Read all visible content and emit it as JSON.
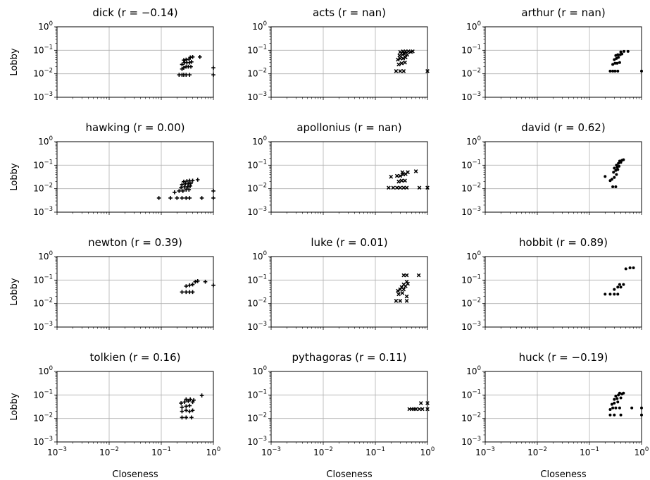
{
  "chart_data": {
    "type": "scatter",
    "xlabel": "Closeness",
    "ylabel": "Lobby",
    "xscale": "log",
    "yscale": "log",
    "xlim": [
      0.001,
      1
    ],
    "ylim": [
      0.001,
      1
    ],
    "grid": true,
    "tick_labels": [
      "10",
      "−3",
      "10",
      "−2",
      "10",
      "−1",
      "10",
      "0"
    ],
    "panels": [
      {
        "label": "dick",
        "r_text": "(r = −0.14)",
        "marker": "plus",
        "points": [
          [
            0.22,
            0.009
          ],
          [
            0.25,
            0.009
          ],
          [
            0.27,
            0.009
          ],
          [
            0.3,
            0.009
          ],
          [
            0.35,
            0.009
          ],
          [
            0.25,
            0.016
          ],
          [
            0.27,
            0.018
          ],
          [
            0.3,
            0.02
          ],
          [
            0.33,
            0.02
          ],
          [
            0.37,
            0.02
          ],
          [
            0.25,
            0.025
          ],
          [
            0.28,
            0.03
          ],
          [
            0.31,
            0.03
          ],
          [
            0.35,
            0.03
          ],
          [
            0.38,
            0.032
          ],
          [
            0.27,
            0.038
          ],
          [
            0.3,
            0.04
          ],
          [
            0.34,
            0.042
          ],
          [
            0.36,
            0.05
          ],
          [
            0.4,
            0.052
          ],
          [
            0.55,
            0.052
          ],
          [
            1.0,
            0.009
          ],
          [
            1.0,
            0.018
          ]
        ]
      },
      {
        "label": "acts",
        "r_text": "(r = nan)",
        "marker": "x",
        "points": [
          [
            0.25,
            0.013
          ],
          [
            0.3,
            0.013
          ],
          [
            0.35,
            0.013
          ],
          [
            0.28,
            0.025
          ],
          [
            0.32,
            0.028
          ],
          [
            0.37,
            0.03
          ],
          [
            0.27,
            0.04
          ],
          [
            0.3,
            0.045
          ],
          [
            0.34,
            0.045
          ],
          [
            0.38,
            0.05
          ],
          [
            0.29,
            0.06
          ],
          [
            0.33,
            0.065
          ],
          [
            0.36,
            0.07
          ],
          [
            0.41,
            0.065
          ],
          [
            0.3,
            0.085
          ],
          [
            0.34,
            0.09
          ],
          [
            0.38,
            0.09
          ],
          [
            0.43,
            0.09
          ],
          [
            0.48,
            0.085
          ],
          [
            0.52,
            0.09
          ],
          [
            1.0,
            0.013
          ]
        ]
      },
      {
        "label": "arthur",
        "r_text": "(r = nan)",
        "marker": "dot",
        "points": [
          [
            0.25,
            0.013
          ],
          [
            0.28,
            0.013
          ],
          [
            0.31,
            0.013
          ],
          [
            0.35,
            0.013
          ],
          [
            0.28,
            0.025
          ],
          [
            0.31,
            0.028
          ],
          [
            0.34,
            0.028
          ],
          [
            0.38,
            0.03
          ],
          [
            0.3,
            0.04
          ],
          [
            0.33,
            0.045
          ],
          [
            0.36,
            0.05
          ],
          [
            0.32,
            0.06
          ],
          [
            0.35,
            0.065
          ],
          [
            0.39,
            0.065
          ],
          [
            0.42,
            0.07
          ],
          [
            0.4,
            0.085
          ],
          [
            0.46,
            0.09
          ],
          [
            0.55,
            0.09
          ],
          [
            1.0,
            0.013
          ]
        ]
      },
      {
        "label": "hawking",
        "r_text": "(r = 0.00)",
        "marker": "plus",
        "points": [
          [
            0.09,
            0.004
          ],
          [
            0.15,
            0.004
          ],
          [
            0.2,
            0.004
          ],
          [
            0.25,
            0.004
          ],
          [
            0.3,
            0.004
          ],
          [
            0.35,
            0.004
          ],
          [
            0.6,
            0.004
          ],
          [
            1.0,
            0.004
          ],
          [
            0.18,
            0.007
          ],
          [
            0.22,
            0.008
          ],
          [
            0.26,
            0.008
          ],
          [
            0.3,
            0.009
          ],
          [
            0.34,
            0.009
          ],
          [
            0.24,
            0.011
          ],
          [
            0.28,
            0.012
          ],
          [
            0.32,
            0.012
          ],
          [
            0.36,
            0.013
          ],
          [
            0.25,
            0.015
          ],
          [
            0.29,
            0.016
          ],
          [
            0.33,
            0.016
          ],
          [
            0.37,
            0.017
          ],
          [
            0.27,
            0.02
          ],
          [
            0.31,
            0.021
          ],
          [
            0.35,
            0.022
          ],
          [
            0.4,
            0.022
          ],
          [
            0.5,
            0.024
          ],
          [
            1.0,
            0.008
          ]
        ]
      },
      {
        "label": "apollonius",
        "r_text": "(r = nan)",
        "marker": "x",
        "points": [
          [
            0.18,
            0.011
          ],
          [
            0.22,
            0.011
          ],
          [
            0.26,
            0.011
          ],
          [
            0.3,
            0.011
          ],
          [
            0.35,
            0.011
          ],
          [
            0.4,
            0.011
          ],
          [
            0.7,
            0.011
          ],
          [
            1.0,
            0.011
          ],
          [
            0.28,
            0.02
          ],
          [
            0.32,
            0.022
          ],
          [
            0.37,
            0.022
          ],
          [
            0.2,
            0.032
          ],
          [
            0.26,
            0.035
          ],
          [
            0.3,
            0.035
          ],
          [
            0.34,
            0.04
          ],
          [
            0.38,
            0.042
          ],
          [
            0.33,
            0.05
          ],
          [
            0.42,
            0.05
          ],
          [
            0.6,
            0.055
          ]
        ]
      },
      {
        "label": "david",
        "r_text": "(r = 0.62)",
        "marker": "dot",
        "points": [
          [
            0.2,
            0.033
          ],
          [
            0.25,
            0.022
          ],
          [
            0.28,
            0.012
          ],
          [
            0.32,
            0.012
          ],
          [
            0.27,
            0.025
          ],
          [
            0.3,
            0.03
          ],
          [
            0.33,
            0.04
          ],
          [
            0.29,
            0.05
          ],
          [
            0.32,
            0.06
          ],
          [
            0.35,
            0.065
          ],
          [
            0.3,
            0.075
          ],
          [
            0.34,
            0.08
          ],
          [
            0.37,
            0.09
          ],
          [
            0.33,
            0.1
          ],
          [
            0.36,
            0.12
          ],
          [
            0.4,
            0.13
          ],
          [
            0.38,
            0.15
          ],
          [
            0.42,
            0.16
          ],
          [
            0.45,
            0.17
          ]
        ]
      },
      {
        "label": "newton",
        "r_text": "(r = 0.39)",
        "marker": "plus",
        "points": [
          [
            0.25,
            0.031
          ],
          [
            0.3,
            0.031
          ],
          [
            0.35,
            0.031
          ],
          [
            0.4,
            0.031
          ],
          [
            0.3,
            0.055
          ],
          [
            0.35,
            0.06
          ],
          [
            0.4,
            0.065
          ],
          [
            0.45,
            0.085
          ],
          [
            0.5,
            0.09
          ],
          [
            0.7,
            0.085
          ],
          [
            1.0,
            0.06
          ]
        ]
      },
      {
        "label": "luke",
        "r_text": "(r = 0.01)",
        "marker": "x",
        "points": [
          [
            0.25,
            0.013
          ],
          [
            0.3,
            0.013
          ],
          [
            0.4,
            0.013
          ],
          [
            0.28,
            0.025
          ],
          [
            0.33,
            0.028
          ],
          [
            0.4,
            0.02
          ],
          [
            0.27,
            0.035
          ],
          [
            0.3,
            0.04
          ],
          [
            0.35,
            0.04
          ],
          [
            0.32,
            0.05
          ],
          [
            0.38,
            0.055
          ],
          [
            0.35,
            0.065
          ],
          [
            0.42,
            0.07
          ],
          [
            0.4,
            0.085
          ],
          [
            0.35,
            0.16
          ],
          [
            0.4,
            0.16
          ],
          [
            0.68,
            0.16
          ]
        ]
      },
      {
        "label": "hobbit",
        "r_text": "(r = 0.89)",
        "marker": "dot",
        "points": [
          [
            0.2,
            0.025
          ],
          [
            0.25,
            0.025
          ],
          [
            0.3,
            0.025
          ],
          [
            0.35,
            0.025
          ],
          [
            0.3,
            0.04
          ],
          [
            0.35,
            0.05
          ],
          [
            0.4,
            0.05
          ],
          [
            0.45,
            0.065
          ],
          [
            0.38,
            0.065
          ],
          [
            0.5,
            0.3
          ],
          [
            0.6,
            0.33
          ],
          [
            0.7,
            0.33
          ]
        ]
      },
      {
        "label": "tolkien",
        "r_text": "(r = 0.16)",
        "marker": "plus",
        "points": [
          [
            0.25,
            0.011
          ],
          [
            0.3,
            0.011
          ],
          [
            0.38,
            0.011
          ],
          [
            0.25,
            0.02
          ],
          [
            0.3,
            0.022
          ],
          [
            0.35,
            0.02
          ],
          [
            0.4,
            0.022
          ],
          [
            0.25,
            0.03
          ],
          [
            0.3,
            0.033
          ],
          [
            0.35,
            0.035
          ],
          [
            0.24,
            0.045
          ],
          [
            0.28,
            0.05
          ],
          [
            0.33,
            0.055
          ],
          [
            0.4,
            0.05
          ],
          [
            0.3,
            0.065
          ],
          [
            0.36,
            0.065
          ],
          [
            0.42,
            0.06
          ],
          [
            0.6,
            0.095
          ]
        ]
      },
      {
        "label": "pythagoras",
        "r_text": "(r = 0.11)",
        "marker": "x",
        "points": [
          [
            0.45,
            0.025
          ],
          [
            0.5,
            0.025
          ],
          [
            0.55,
            0.025
          ],
          [
            0.6,
            0.025
          ],
          [
            0.7,
            0.025
          ],
          [
            0.8,
            0.025
          ],
          [
            1.0,
            0.025
          ],
          [
            0.75,
            0.045
          ],
          [
            1.0,
            0.045
          ]
        ]
      },
      {
        "label": "huck",
        "r_text": "(r = −0.19)",
        "marker": "dot",
        "points": [
          [
            0.25,
            0.014
          ],
          [
            0.3,
            0.014
          ],
          [
            0.4,
            0.014
          ],
          [
            0.25,
            0.024
          ],
          [
            0.28,
            0.028
          ],
          [
            0.32,
            0.028
          ],
          [
            0.38,
            0.028
          ],
          [
            0.27,
            0.04
          ],
          [
            0.3,
            0.045
          ],
          [
            0.35,
            0.05
          ],
          [
            0.3,
            0.065
          ],
          [
            0.34,
            0.07
          ],
          [
            0.4,
            0.075
          ],
          [
            0.32,
            0.09
          ],
          [
            0.36,
            0.1
          ],
          [
            0.42,
            0.11
          ],
          [
            0.38,
            0.12
          ],
          [
            0.45,
            0.12
          ],
          [
            0.65,
            0.028
          ],
          [
            1.0,
            0.014
          ],
          [
            1.0,
            0.028
          ]
        ]
      }
    ]
  }
}
